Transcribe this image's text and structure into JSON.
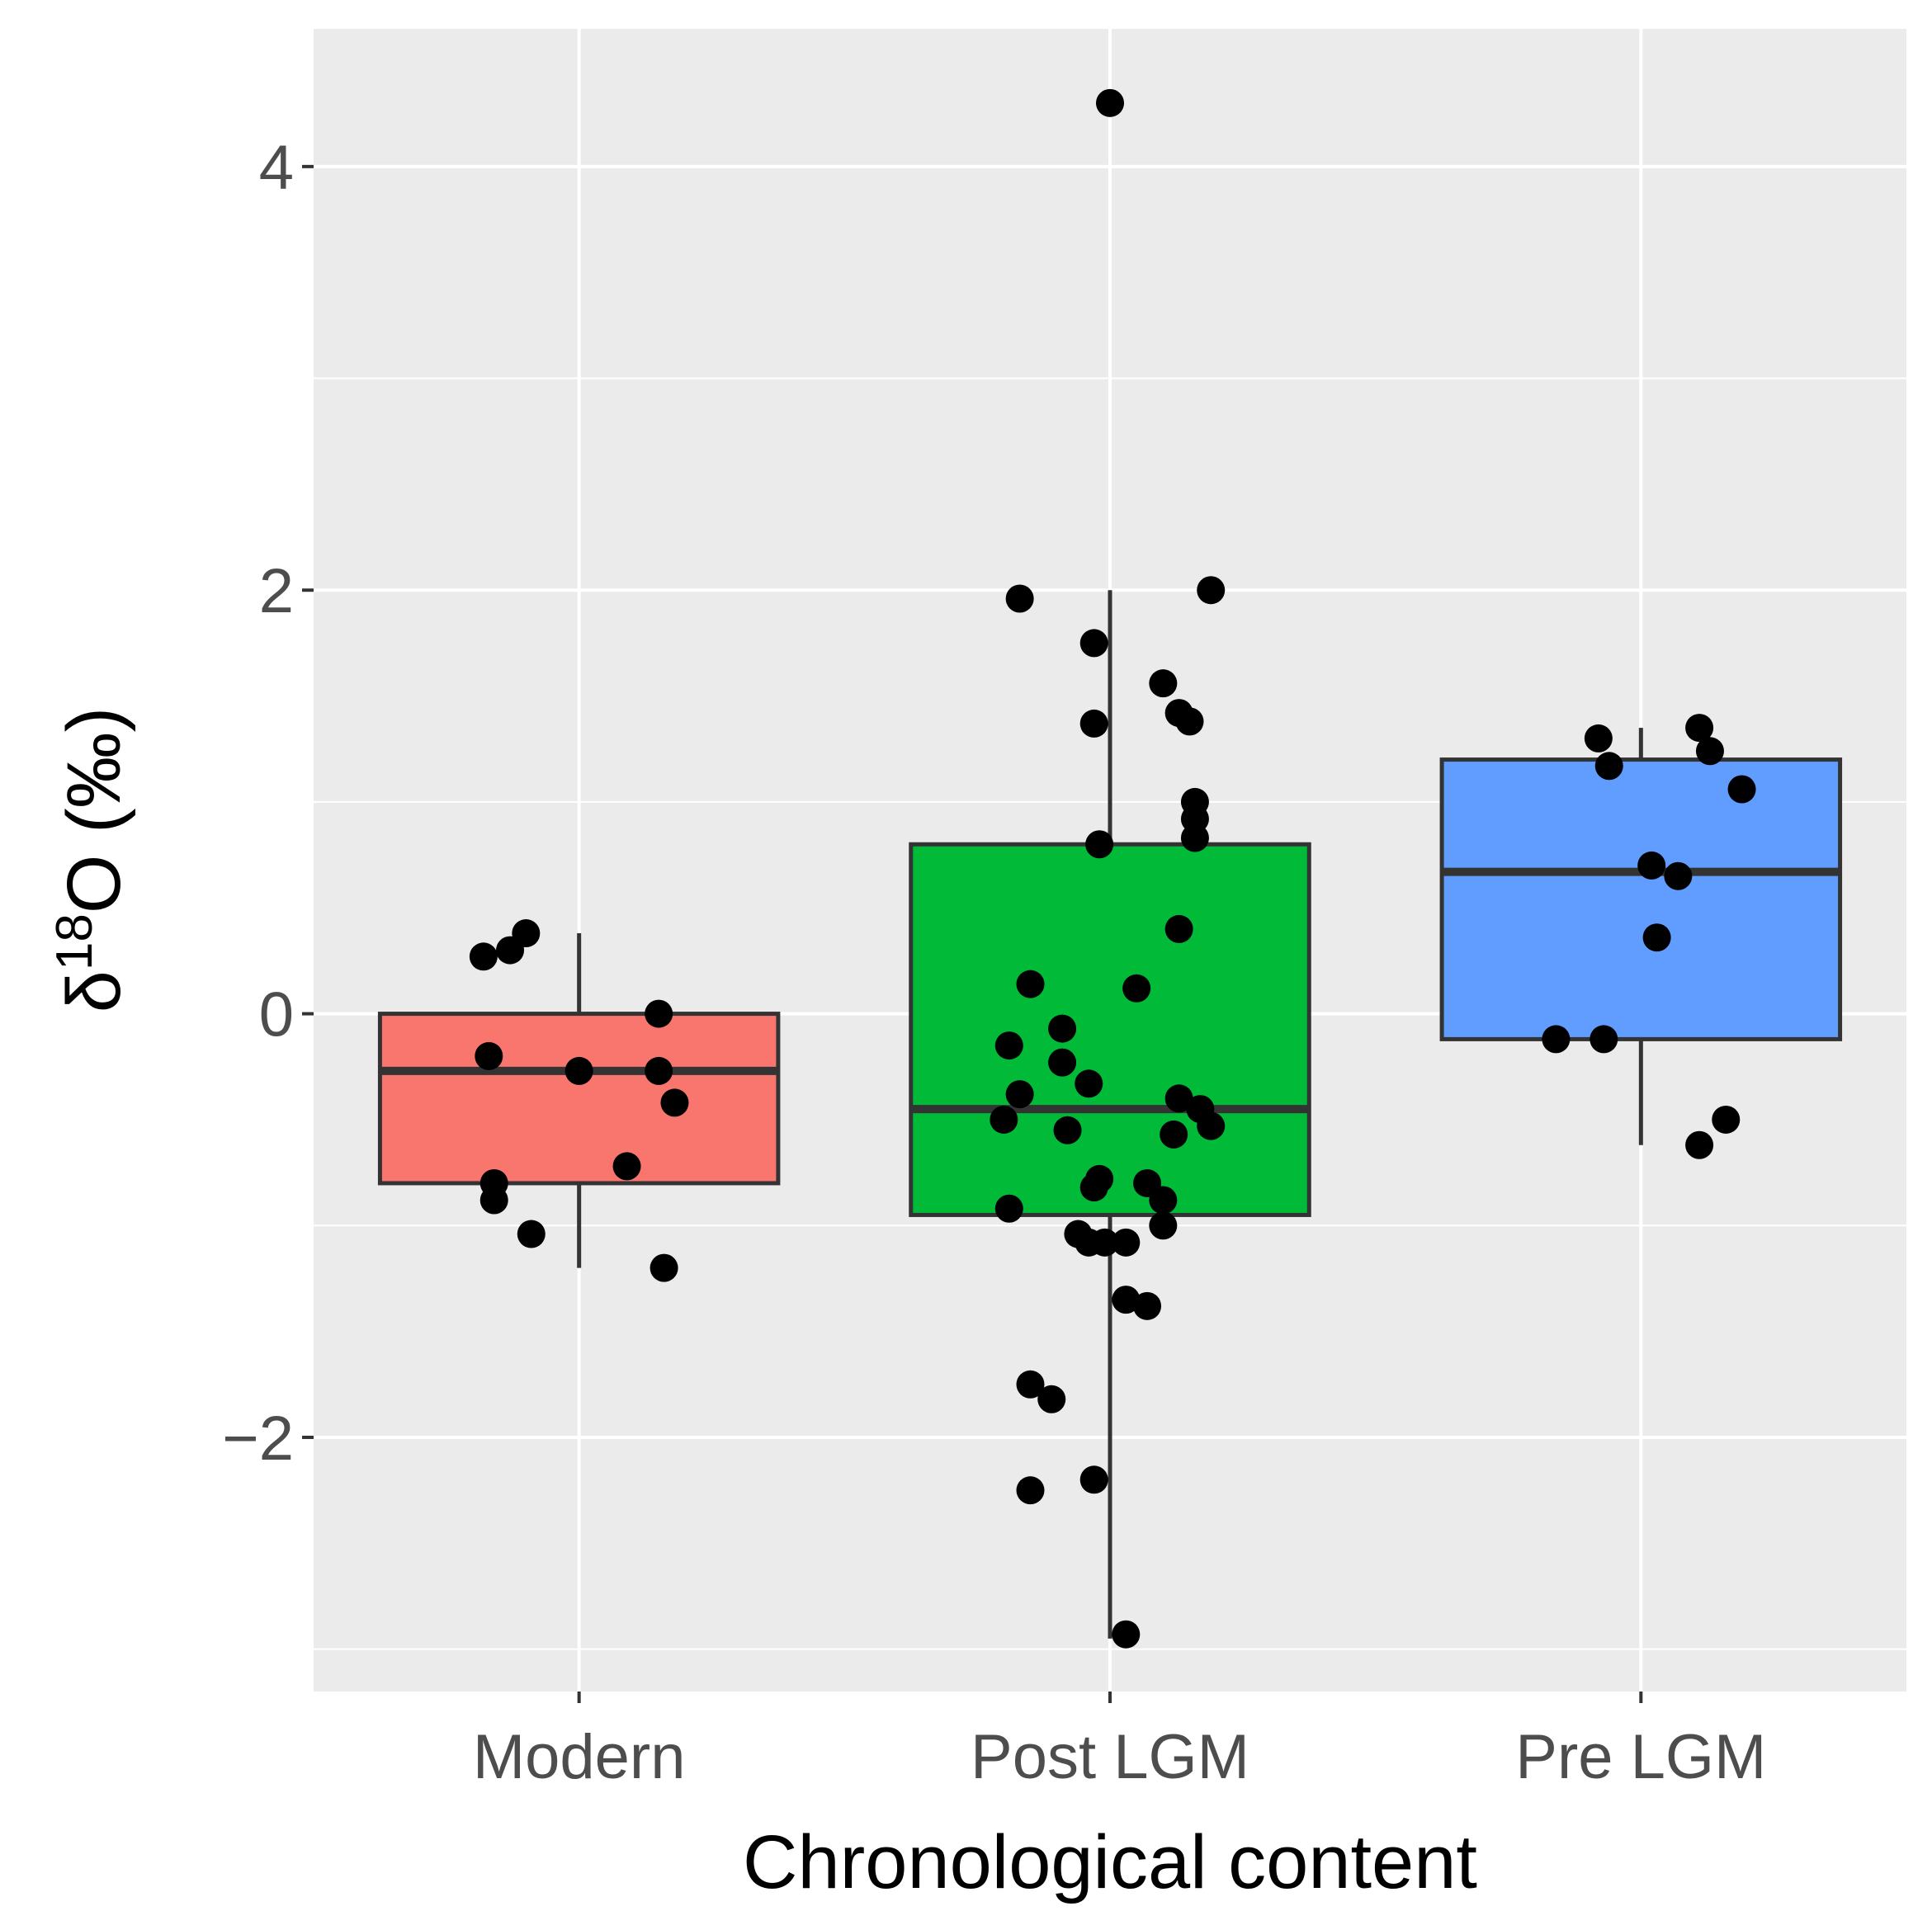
{
  "chart_data": {
    "type": "boxplot",
    "title": "",
    "xlabel": "Chronological content",
    "ylabel_base": "δ",
    "ylabel_sup": "18",
    "ylabel_rest": "O (‰)",
    "categories": [
      "Modern",
      "Post LGM",
      "Pre LGM"
    ],
    "ylim": [
      -3.2,
      4.65
    ],
    "y_ticks": [
      -2,
      0,
      2,
      4
    ],
    "y_tick_labels": [
      "−2",
      "0",
      "2",
      "4"
    ],
    "grid": true,
    "boxes": [
      {
        "category": "Modern",
        "color": "#F8766D",
        "min": -1.2,
        "q1": -0.8,
        "median": -0.27,
        "q3": 0.0,
        "max": 0.38
      },
      {
        "category": "Post LGM",
        "color": "#00BA38",
        "min": -2.95,
        "q1": -0.95,
        "median": -0.45,
        "q3": 0.8,
        "max": 2.0
      },
      {
        "category": "Pre LGM",
        "color": "#619CFF",
        "min": -0.62,
        "q1": -0.12,
        "median": 0.67,
        "q3": 1.2,
        "max": 1.35
      }
    ],
    "points": [
      {
        "category": "Modern",
        "values": [
          0.38,
          0.3,
          0.27,
          0.0,
          -0.2,
          -0.27,
          -0.27,
          -0.42,
          -0.72,
          -0.8,
          -0.88,
          -1.04,
          -1.2
        ],
        "offsets": [
          -0.1,
          -0.13,
          -0.18,
          0.15,
          -0.17,
          0.0,
          0.15,
          0.18,
          0.09,
          -0.16,
          -0.16,
          -0.09,
          0.16
        ]
      },
      {
        "category": "Post LGM",
        "values": [
          4.3,
          2.0,
          1.96,
          1.75,
          1.56,
          1.42,
          1.38,
          1.37,
          1.0,
          0.92,
          0.83,
          0.8,
          0.4,
          0.14,
          0.12,
          -0.07,
          -0.15,
          -0.23,
          -0.33,
          -0.38,
          -0.4,
          -0.45,
          -0.5,
          -0.53,
          -0.55,
          -0.57,
          -0.78,
          -0.8,
          -0.82,
          -0.88,
          -0.92,
          -1.0,
          -1.04,
          -1.08,
          -1.08,
          -1.08,
          -1.35,
          -1.38,
          -1.75,
          -1.82,
          -2.2,
          -2.25,
          -2.93
        ],
        "offsets": [
          0.0,
          0.19,
          -0.17,
          -0.03,
          0.1,
          0.13,
          0.15,
          -0.03,
          0.16,
          0.16,
          0.16,
          -0.02,
          0.13,
          -0.15,
          0.05,
          -0.09,
          -0.19,
          -0.09,
          -0.04,
          -0.17,
          0.13,
          0.17,
          -0.2,
          0.19,
          -0.08,
          0.12,
          -0.02,
          0.07,
          -0.03,
          0.1,
          -0.19,
          0.1,
          -0.06,
          -0.04,
          -0.01,
          0.03,
          0.03,
          0.07,
          -0.15,
          -0.11,
          -0.03,
          -0.15,
          0.03
        ]
      },
      {
        "category": "Pre LGM",
        "values": [
          1.35,
          1.3,
          1.24,
          1.17,
          1.06,
          0.7,
          0.65,
          0.36,
          -0.12,
          -0.12,
          -0.5,
          -0.62
        ],
        "offsets": [
          0.11,
          -0.08,
          0.13,
          -0.06,
          0.19,
          0.02,
          0.07,
          0.03,
          -0.16,
          -0.07,
          0.16,
          0.11
        ]
      }
    ]
  }
}
